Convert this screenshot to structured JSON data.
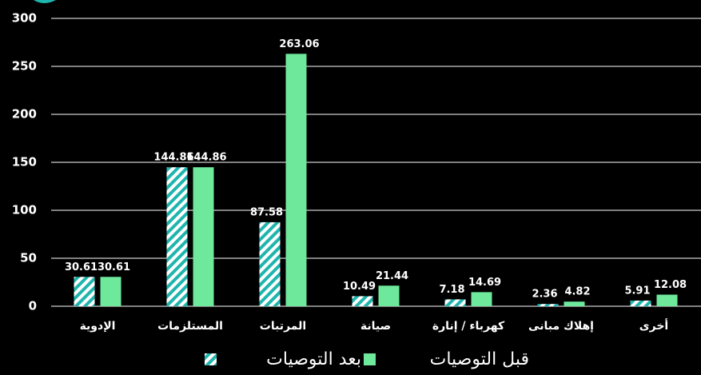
{
  "chart_data": {
    "type": "bar",
    "categories": [
      "الإدوية",
      "المستلزمات",
      "المرتبات",
      "صيانة",
      "كهرباء / إنارة",
      "إهلاك مبانى",
      "أخرى"
    ],
    "series": [
      {
        "name": "بعد التوصيات",
        "color": "#1fb5ad",
        "pattern": "hatch",
        "values": [
          30.61,
          144.86,
          87.58,
          10.49,
          7.18,
          2.36,
          5.91
        ]
      },
      {
        "name": "قبل التوصيات",
        "color": "#6ee89b",
        "values": [
          30.61,
          144.86,
          263.06,
          21.44,
          14.69,
          4.82,
          12.08
        ]
      }
    ],
    "ylim": [
      0,
      300
    ],
    "yticks": [
      0,
      50,
      100,
      150,
      200,
      250,
      300
    ],
    "grid": true
  }
}
